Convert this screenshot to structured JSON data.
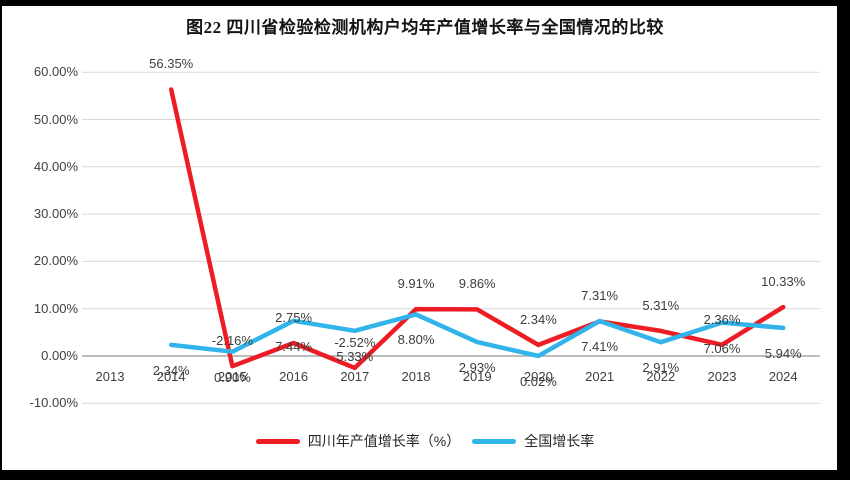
{
  "page": {
    "background": "#000000",
    "panel_background": "#ffffff"
  },
  "chart_data": {
    "type": "line",
    "title": "图22  四川省检验检测机构户均年产值增长率与全国情况的比较",
    "categories": [
      "2013",
      "2014",
      "2015",
      "2016",
      "2017",
      "2018",
      "2019",
      "2020",
      "2021",
      "2022",
      "2023",
      "2024"
    ],
    "series": [
      {
        "id": "sichuan",
        "name": "四川年产值增长率（%）",
        "color": "#ee1c25",
        "label_position": "above",
        "values": [
          null,
          56.35,
          -2.16,
          2.75,
          -2.52,
          9.91,
          9.86,
          2.34,
          7.31,
          5.31,
          2.36,
          10.33
        ],
        "labels": [
          "",
          "56.35%",
          "-2.16%",
          "2.75%",
          "-2.52%",
          "9.91%",
          "9.86%",
          "2.34%",
          "7.31%",
          "5.31%",
          "2.36%",
          "10.33%"
        ]
      },
      {
        "id": "national",
        "name": "全国增长率",
        "color": "#30b4e9",
        "label_position": "below",
        "values": [
          null,
          2.34,
          0.9,
          7.44,
          5.33,
          8.8,
          2.93,
          0.02,
          7.41,
          2.91,
          7.06,
          5.94
        ],
        "labels": [
          "",
          "2.34%",
          "0.90%",
          "7.44%",
          "5.33%",
          "8.80%",
          "2.93%",
          "0.02%",
          "7.41%",
          "2.91%",
          "7.06%",
          "5.94%"
        ]
      }
    ],
    "ylim": [
      -10,
      60
    ],
    "yticks": [
      60,
      50,
      40,
      30,
      20,
      10,
      0,
      -10
    ],
    "ytick_labels": [
      "60.00%",
      "50.00%",
      "40.00%",
      "30.00%",
      "20.00%",
      "10.00%",
      "0.00%",
      "-10.00%"
    ],
    "grid": true,
    "legend_position": "bottom",
    "axis_text_color": "#404040",
    "gridline_color": "#d9d9d9",
    "zero_axis_color": "#a6a6a6"
  }
}
